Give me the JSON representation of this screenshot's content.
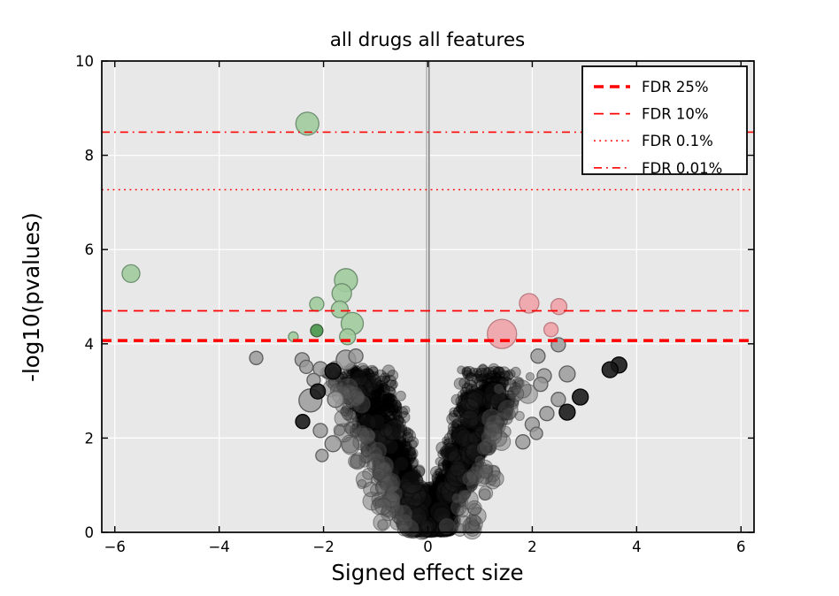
{
  "figure": {
    "bg_color": "#ffffff",
    "axes_bg_color": "#e8e8e8",
    "grid_color": "#ffffff",
    "spine_color": "#000000",
    "accent_red": "#ff0000",
    "zero_line_color": "#7d7d7d"
  },
  "chart_data": {
    "type": "scatter",
    "subtype": "volcano",
    "title": "all drugs all features",
    "xlabel": "Signed effect size",
    "ylabel": "-log10(pvalues)",
    "xlim": [
      -6.25,
      6.25
    ],
    "ylim": [
      0,
      10
    ],
    "xticks": [
      -6,
      -4,
      -2,
      0,
      2,
      4,
      6
    ],
    "xtick_labels": [
      "−6",
      "−4",
      "−2",
      "0",
      "2",
      "4",
      "6"
    ],
    "yticks": [
      0,
      2,
      4,
      6,
      8,
      10
    ],
    "ytick_labels": [
      "0",
      "2",
      "4",
      "6",
      "8",
      "10"
    ],
    "grid": true,
    "legend_position": "upper right",
    "vline_x": 0,
    "fdr_lines": [
      {
        "label": "FDR 25%",
        "y": 4.07,
        "style": "dashed",
        "width": 3.5
      },
      {
        "label": "FDR 10%",
        "y": 4.7,
        "style": "dashed",
        "width": 1.8
      },
      {
        "label": "FDR 0.1%",
        "y": 7.27,
        "style": "dotted",
        "width": 1.6
      },
      {
        "label": "FDR 0.01%",
        "y": 8.49,
        "style": "dashdot",
        "width": 1.6
      }
    ],
    "highlight_points": {
      "green": [
        {
          "x": -5.69,
          "y": 5.49,
          "r": 10
        },
        {
          "x": -2.31,
          "y": 8.67,
          "r": 13
        },
        {
          "x": -1.57,
          "y": 5.35,
          "r": 13
        },
        {
          "x": -1.65,
          "y": 5.07,
          "r": 11
        },
        {
          "x": -2.13,
          "y": 4.84,
          "r": 8
        },
        {
          "x": -1.69,
          "y": 4.73,
          "r": 9.5
        },
        {
          "x": -1.45,
          "y": 4.43,
          "r": 12.5
        },
        {
          "x": -1.54,
          "y": 4.15,
          "r": 9
        },
        {
          "x": -2.58,
          "y": 4.15,
          "r": 5.5
        }
      ],
      "dark_green": [
        {
          "x": -2.13,
          "y": 4.28,
          "r": 7
        }
      ],
      "pink": [
        {
          "x": 1.94,
          "y": 4.86,
          "r": 11
        },
        {
          "x": 2.51,
          "y": 4.79,
          "r": 9
        },
        {
          "x": 2.36,
          "y": 4.3,
          "r": 8
        },
        {
          "x": 1.42,
          "y": 4.21,
          "r": 16.5
        }
      ],
      "gray": [
        {
          "x": -3.29,
          "y": 3.7,
          "r": 7.5
        },
        {
          "x": -2.41,
          "y": 3.66,
          "r": 8
        },
        {
          "x": -2.33,
          "y": 3.51,
          "r": 7.5
        },
        {
          "x": -2.06,
          "y": 3.47,
          "r": 8
        },
        {
          "x": -1.57,
          "y": 3.66,
          "r": 11
        },
        {
          "x": -1.38,
          "y": 3.74,
          "r": 8
        },
        {
          "x": -2.19,
          "y": 3.23,
          "r": 7.5
        },
        {
          "x": -2.25,
          "y": 2.8,
          "r": 13
        },
        {
          "x": -1.77,
          "y": 2.82,
          "r": 9
        },
        {
          "x": -2.06,
          "y": 2.16,
          "r": 8
        },
        {
          "x": -1.82,
          "y": 1.88,
          "r": 9
        },
        {
          "x": -2.03,
          "y": 1.63,
          "r": 7
        },
        {
          "x": 2.11,
          "y": 3.74,
          "r": 8
        },
        {
          "x": 2.5,
          "y": 3.98,
          "r": 8
        },
        {
          "x": 2.67,
          "y": 3.36,
          "r": 9
        },
        {
          "x": 2.23,
          "y": 3.32,
          "r": 8
        },
        {
          "x": 2.16,
          "y": 3.14,
          "r": 8
        },
        {
          "x": 2.5,
          "y": 2.82,
          "r": 8
        },
        {
          "x": 2.28,
          "y": 2.52,
          "r": 8
        },
        {
          "x": 2.0,
          "y": 2.29,
          "r": 8
        },
        {
          "x": 2.08,
          "y": 2.1,
          "r": 7
        },
        {
          "x": 1.82,
          "y": 1.92,
          "r": 8
        }
      ],
      "dark": [
        {
          "x": 3.66,
          "y": 3.55,
          "r": 9
        },
        {
          "x": 3.49,
          "y": 3.45,
          "r": 9
        },
        {
          "x": 2.92,
          "y": 2.87,
          "r": 9
        },
        {
          "x": 2.67,
          "y": 2.55,
          "r": 9
        },
        {
          "x": -1.82,
          "y": 3.42,
          "r": 9
        },
        {
          "x": -2.11,
          "y": 2.99,
          "r": 8.5
        },
        {
          "x": -2.4,
          "y": 2.35,
          "r": 8
        }
      ]
    },
    "bulk_cloud": {
      "seed": 1337,
      "arm_count": 2600,
      "arm_y_max": 3.45,
      "arm_y_power": 1.7,
      "arm_x_base": 0.15,
      "arm_x_slope": 0.34,
      "arm_jitter_base": 0.3,
      "arm_jitter_slope": 0.13,
      "blob_count": 700,
      "blob_x_spread": 0.38,
      "blob_y_max": 0.9,
      "texture_count": 90,
      "fringe_count": 135,
      "color": "#000000",
      "fringe_color": "#5a5a5a"
    },
    "point_colors": {
      "green_fill": "#a1cb9d",
      "green_edge": "#6e8f70",
      "dark_green_fill": "#4f9a53",
      "dark_green_edge": "#3c5c3e",
      "pink_fill": "#f0a3a8",
      "pink_edge": "#bb7c82",
      "gray_fill": "#969696",
      "gray_edge": "#5e5e5e",
      "dark_fill": "#161616",
      "dark_edge": "#000000"
    }
  }
}
